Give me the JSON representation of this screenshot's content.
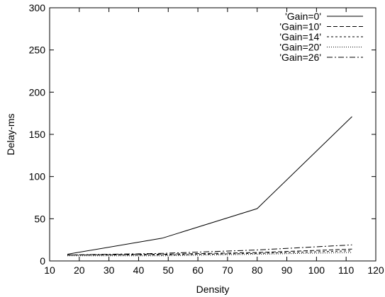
{
  "chart_data": {
    "type": "line",
    "title": "",
    "xlabel": "Density",
    "ylabel": "Delay-ms",
    "xlim": [
      10,
      120
    ],
    "ylim": [
      0,
      300
    ],
    "xticks": [
      10,
      20,
      30,
      40,
      50,
      60,
      70,
      80,
      90,
      100,
      110,
      120
    ],
    "yticks": [
      0,
      50,
      100,
      150,
      200,
      250,
      300
    ],
    "grid": false,
    "legend_position": "top-right",
    "x": [
      16,
      48,
      80,
      112
    ],
    "series": [
      {
        "name": "'Gain=0'",
        "dash": "solid",
        "values": [
          8,
          27,
          62,
          171
        ]
      },
      {
        "name": "'Gain=10'",
        "dash": "dashed",
        "values": [
          7,
          8,
          10,
          14
        ]
      },
      {
        "name": "'Gain=14'",
        "dash": "short-dashed",
        "values": [
          7,
          7,
          9,
          12
        ]
      },
      {
        "name": "'Gain=20'",
        "dash": "dotted",
        "values": [
          6,
          6,
          8,
          10
        ]
      },
      {
        "name": "'Gain=26'",
        "dash": "dash-dot",
        "values": [
          7,
          9,
          13,
          19
        ]
      }
    ]
  }
}
